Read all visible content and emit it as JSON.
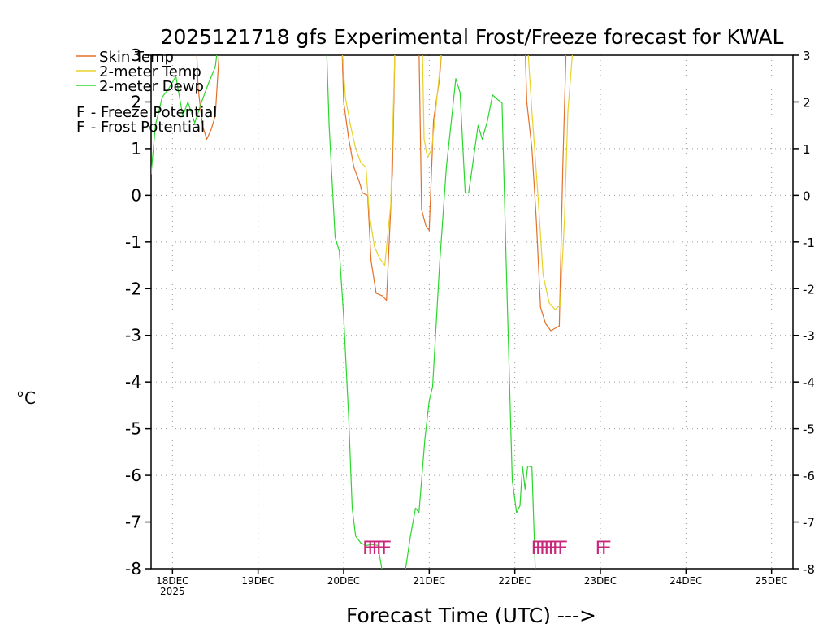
{
  "chart_data": {
    "type": "line",
    "title": "2025121718 gfs Experimental Frost/Freeze forecast for KWAL",
    "xlabel": "Forecast Time (UTC) --->",
    "ylabel": "°C",
    "ylim": [
      -8,
      3
    ],
    "yticks": [
      3,
      2,
      1,
      0,
      -1,
      -2,
      -3,
      -4,
      -5,
      -6,
      -7,
      -8
    ],
    "xlim_days": [
      -0.25,
      7.25
    ],
    "xticks": [
      {
        "day": 0,
        "label": "18DEC"
      },
      {
        "day": 1,
        "label": "19DEC"
      },
      {
        "day": 2,
        "label": "20DEC"
      },
      {
        "day": 3,
        "label": "21DEC"
      },
      {
        "day": 4,
        "label": "22DEC"
      },
      {
        "day": 5,
        "label": "23DEC"
      },
      {
        "day": 6,
        "label": "24DEC"
      },
      {
        "day": 7,
        "label": "25DEC"
      }
    ],
    "xtick_sublabel": "2025",
    "grid": true,
    "legend": {
      "position": "top-left",
      "entries": [
        {
          "name": "Skin Temp",
          "color": "#e2702a"
        },
        {
          "name": "2-meter Temp",
          "color": "#e8d22a"
        },
        {
          "name": "2-meter Dewp",
          "color": "#2ad72a"
        }
      ],
      "potentials": [
        {
          "symbol": "F",
          "text": " - Freeze Potential",
          "color": "#c8287a"
        },
        {
          "symbol": "F",
          "text": " - Frost Potential",
          "color": "#4860e0"
        }
      ]
    },
    "series": [
      {
        "name": "Skin Temp",
        "color": "#e2702a",
        "segments": [
          [
            [
              0.28,
              3.2
            ],
            [
              0.3,
              2.3
            ],
            [
              0.35,
              1.5
            ],
            [
              0.4,
              1.2
            ],
            [
              0.45,
              1.4
            ],
            [
              0.5,
              1.7
            ],
            [
              0.52,
              2.3
            ],
            [
              0.55,
              3.2
            ]
          ],
          [
            [
              1.98,
              3.2
            ],
            [
              2.0,
              2.0
            ],
            [
              2.06,
              1.2
            ],
            [
              2.12,
              0.6
            ],
            [
              2.18,
              0.3
            ],
            [
              2.22,
              0.05
            ],
            [
              2.28,
              0.0
            ],
            [
              2.32,
              -1.4
            ],
            [
              2.38,
              -2.1
            ],
            [
              2.45,
              -2.15
            ],
            [
              2.5,
              -2.25
            ],
            [
              2.57,
              0.5
            ],
            [
              2.6,
              3.2
            ]
          ],
          [
            [
              2.88,
              3.2
            ],
            [
              2.91,
              -0.3
            ],
            [
              2.96,
              -0.65
            ],
            [
              3.0,
              -0.75
            ],
            [
              3.05,
              1.6
            ],
            [
              3.12,
              2.5
            ],
            [
              3.15,
              3.2
            ]
          ],
          [
            [
              4.12,
              3.2
            ],
            [
              4.14,
              2.0
            ],
            [
              4.2,
              1.0
            ],
            [
              4.25,
              -0.5
            ],
            [
              4.3,
              -2.4
            ],
            [
              4.36,
              -2.75
            ],
            [
              4.42,
              -2.9
            ],
            [
              4.47,
              -2.85
            ],
            [
              4.52,
              -2.8
            ],
            [
              4.56,
              0.6
            ],
            [
              4.6,
              3.2
            ]
          ]
        ]
      },
      {
        "name": "2-meter Temp",
        "color": "#e8d22a",
        "segments": [
          [
            [
              1.98,
              3.2
            ],
            [
              2.02,
              2.1
            ],
            [
              2.08,
              1.5
            ],
            [
              2.14,
              1.0
            ],
            [
              2.2,
              0.7
            ],
            [
              2.26,
              0.6
            ],
            [
              2.3,
              -0.4
            ],
            [
              2.36,
              -1.1
            ],
            [
              2.42,
              -1.35
            ],
            [
              2.48,
              -1.5
            ],
            [
              2.55,
              -0.2
            ],
            [
              2.6,
              3.2
            ]
          ],
          [
            [
              2.92,
              3.2
            ],
            [
              2.94,
              1.2
            ],
            [
              2.98,
              0.8
            ],
            [
              3.03,
              1.0
            ],
            [
              3.08,
              1.9
            ],
            [
              3.15,
              3.2
            ]
          ],
          [
            [
              4.15,
              3.2
            ],
            [
              4.2,
              1.8
            ],
            [
              4.27,
              0.0
            ],
            [
              4.33,
              -1.7
            ],
            [
              4.4,
              -2.3
            ],
            [
              4.47,
              -2.45
            ],
            [
              4.53,
              -2.35
            ],
            [
              4.58,
              -0.5
            ],
            [
              4.62,
              1.8
            ],
            [
              4.68,
              3.2
            ]
          ]
        ]
      },
      {
        "name": "2-meter Dewp",
        "color": "#2ad72a",
        "segments": [
          [
            [
              -0.25,
              0.45
            ],
            [
              -0.2,
              1.5
            ],
            [
              -0.12,
              2.1
            ],
            [
              -0.04,
              2.3
            ],
            [
              0.04,
              2.55
            ],
            [
              0.12,
              1.7
            ],
            [
              0.18,
              2.0
            ],
            [
              0.26,
              1.55
            ],
            [
              0.34,
              2.0
            ],
            [
              0.42,
              2.4
            ],
            [
              0.5,
              2.75
            ],
            [
              0.53,
              3.2
            ]
          ],
          [
            [
              1.8,
              3.2
            ],
            [
              1.83,
              1.5
            ],
            [
              1.9,
              -0.9
            ],
            [
              1.95,
              -1.2
            ],
            [
              2.0,
              -2.6
            ],
            [
              2.06,
              -4.8
            ],
            [
              2.1,
              -6.7
            ],
            [
              2.14,
              -7.3
            ],
            [
              2.2,
              -7.45
            ],
            [
              2.27,
              -7.5
            ],
            [
              2.33,
              -7.48
            ],
            [
              2.4,
              -7.5
            ],
            [
              2.45,
              -8.05
            ]
          ],
          [
            [
              2.72,
              -8.05
            ],
            [
              2.78,
              -7.3
            ],
            [
              2.84,
              -6.7
            ],
            [
              2.88,
              -6.8
            ],
            [
              2.95,
              -5.2
            ],
            [
              3.0,
              -4.4
            ],
            [
              3.04,
              -4.1
            ],
            [
              3.12,
              -1.5
            ],
            [
              3.2,
              0.6
            ],
            [
              3.27,
              1.8
            ],
            [
              3.31,
              2.5
            ],
            [
              3.36,
              2.2
            ],
            [
              3.42,
              0.05
            ],
            [
              3.46,
              0.05
            ],
            [
              3.51,
              0.7
            ],
            [
              3.57,
              1.5
            ],
            [
              3.62,
              1.2
            ],
            [
              3.68,
              1.6
            ],
            [
              3.74,
              2.15
            ],
            [
              3.8,
              2.05
            ],
            [
              3.85,
              1.98
            ],
            [
              3.9,
              -1.5
            ],
            [
              3.95,
              -4.8
            ],
            [
              3.97,
              -6.1
            ],
            [
              4.02,
              -6.8
            ],
            [
              4.06,
              -6.65
            ],
            [
              4.09,
              -5.8
            ],
            [
              4.12,
              -6.3
            ],
            [
              4.15,
              -5.8
            ],
            [
              4.2,
              -5.82
            ],
            [
              4.24,
              -8.05
            ]
          ]
        ]
      }
    ],
    "freeze_markers": {
      "color": "#c8287a",
      "symbol": "F",
      "days": [
        2.28,
        2.34,
        2.39,
        2.44,
        2.5,
        4.25,
        4.3,
        4.35,
        4.4,
        4.45,
        4.5,
        4.56,
        5.0,
        5.07
      ],
      "value": -7.55
    }
  }
}
